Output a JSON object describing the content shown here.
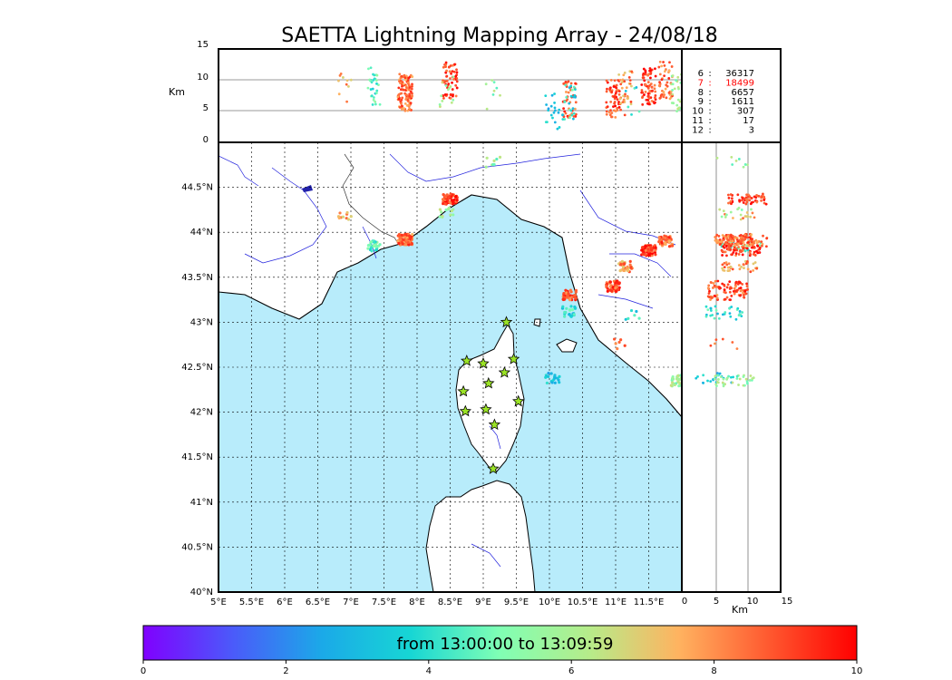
{
  "title": "SAETTA Lightning Mapping Array - 24/08/18",
  "top_panel": {
    "ylabel": "Km",
    "yticks": [
      "0",
      "5",
      "10",
      "15"
    ],
    "counts": [
      {
        "label": "6",
        "value": "36317",
        "highlight": false
      },
      {
        "label": "7",
        "value": "18499",
        "highlight": true
      },
      {
        "label": "8",
        "value": "6657",
        "highlight": false
      },
      {
        "label": "9",
        "value": "1611",
        "highlight": false
      },
      {
        "label": "10",
        "value": "307",
        "highlight": false
      },
      {
        "label": "11",
        "value": "17",
        "highlight": false
      },
      {
        "label": "12",
        "value": "3",
        "highlight": false
      }
    ]
  },
  "map": {
    "lon_ticks": [
      "5°E",
      "5.5°E",
      "6°E",
      "6.5°E",
      "7°E",
      "7.5°E",
      "8°E",
      "8.5°E",
      "9°E",
      "9.5°E",
      "10°E",
      "10.5°E",
      "11°E",
      "11.5°E"
    ],
    "lat_ticks": [
      "40°N",
      "40.5°N",
      "41°N",
      "41.5°N",
      "42°N",
      "42.5°N",
      "43°N",
      "43.5°N",
      "44°N",
      "44.5°N"
    ],
    "sea_color": "#b8ecfb",
    "stations": [
      {
        "lon": 9.35,
        "lat": 43.0
      },
      {
        "lon": 8.75,
        "lat": 42.57
      },
      {
        "lon": 9.0,
        "lat": 42.54
      },
      {
        "lon": 9.46,
        "lat": 42.59
      },
      {
        "lon": 9.32,
        "lat": 42.44
      },
      {
        "lon": 9.08,
        "lat": 42.32
      },
      {
        "lon": 8.7,
        "lat": 42.23
      },
      {
        "lon": 9.53,
        "lat": 42.12
      },
      {
        "lon": 8.73,
        "lat": 42.01
      },
      {
        "lon": 9.04,
        "lat": 42.03
      },
      {
        "lon": 9.17,
        "lat": 41.86
      },
      {
        "lon": 9.15,
        "lat": 41.37
      }
    ]
  },
  "side_panel": {
    "xlabel": "Km",
    "xticks": [
      "0",
      "5",
      "10",
      "15"
    ]
  },
  "colorbar": {
    "label": "from 13:00:00 to 13:09:59",
    "ticks": [
      "0",
      "2",
      "4",
      "6",
      "8",
      "10"
    ]
  },
  "sources": [
    {
      "lon": 6.9,
      "lat": 44.18,
      "alt": 8.5,
      "time": 7.5,
      "n": 10
    },
    {
      "lon": 7.35,
      "lat": 43.85,
      "alt": 9,
      "time": 4.5,
      "n": 30
    },
    {
      "lon": 7.82,
      "lat": 43.92,
      "alt": 8,
      "time": 8.5,
      "n": 110
    },
    {
      "lon": 8.5,
      "lat": 44.37,
      "alt": 10,
      "time": 9.3,
      "n": 60
    },
    {
      "lon": 8.45,
      "lat": 44.22,
      "alt": 8,
      "time": 6.0,
      "n": 12
    },
    {
      "lon": 9.15,
      "lat": 44.78,
      "alt": 7,
      "time": 5.5,
      "n": 8
    },
    {
      "lon": 10.05,
      "lat": 42.38,
      "alt": 5,
      "time": 3.0,
      "n": 20
    },
    {
      "lon": 10.3,
      "lat": 43.3,
      "alt": 7,
      "time": 8.8,
      "n": 40
    },
    {
      "lon": 10.3,
      "lat": 43.12,
      "alt": 6.5,
      "time": 4.0,
      "n": 25
    },
    {
      "lon": 10.95,
      "lat": 43.4,
      "alt": 7,
      "time": 9.0,
      "n": 55
    },
    {
      "lon": 11.15,
      "lat": 43.62,
      "alt": 8.5,
      "time": 8.0,
      "n": 35
    },
    {
      "lon": 11.5,
      "lat": 43.8,
      "alt": 9,
      "time": 9.2,
      "n": 70
    },
    {
      "lon": 11.75,
      "lat": 43.9,
      "alt": 10,
      "time": 8.5,
      "n": 45
    },
    {
      "lon": 11.95,
      "lat": 42.35,
      "alt": 8,
      "time": 5.5,
      "n": 35
    },
    {
      "lon": 11.05,
      "lat": 42.76,
      "alt": 6,
      "time": 9.0,
      "n": 6
    },
    {
      "lon": 11.25,
      "lat": 43.09,
      "alt": 7,
      "time": 4.0,
      "n": 6
    }
  ]
}
